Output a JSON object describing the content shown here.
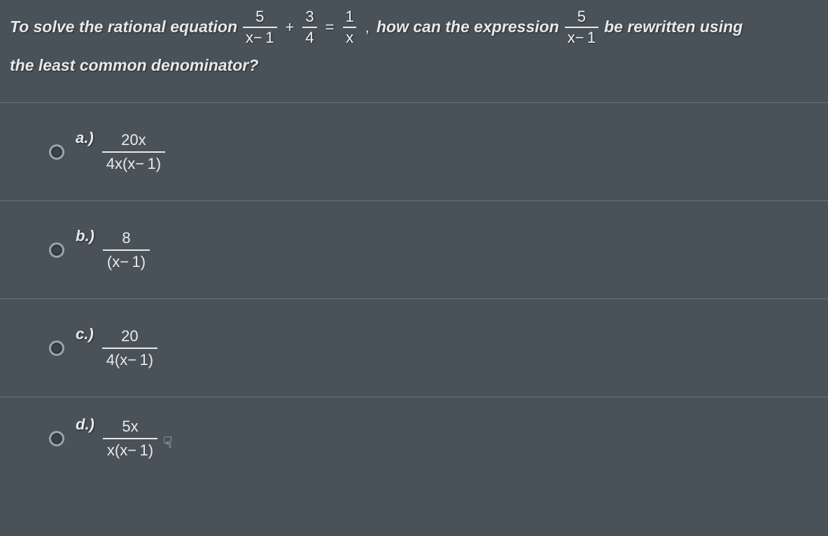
{
  "colors": {
    "background": "#4a5259",
    "text": "#e8e8e8",
    "divider": "#6b7279",
    "radio_border": "#9aa4ad",
    "radio_bg": "#3c444b",
    "frac_rule": "#e8e8e8"
  },
  "typography": {
    "question_fontsize": 23,
    "question_style": "bold italic",
    "math_fontsize": 22,
    "option_label_fontsize": 22
  },
  "question": {
    "part1": "To solve the rational equation",
    "eq_frac1": {
      "num": "5",
      "den": "x− 1"
    },
    "op_plus": "+",
    "eq_frac2": {
      "num": "3",
      "den": "4"
    },
    "op_eq": "=",
    "eq_frac3": {
      "num": "1",
      "den": "x"
    },
    "comma": ",",
    "part2": "how can the expression",
    "expr_frac": {
      "num": "5",
      "den": "x− 1"
    },
    "part3": "be rewritten using",
    "part4": "the least common denominator?"
  },
  "options": [
    {
      "label": "a.)",
      "num": "20x",
      "den": "4x(x− 1)"
    },
    {
      "label": "b.)",
      "num": "8",
      "den": "(x− 1)"
    },
    {
      "label": "c.)",
      "num": "20",
      "den": "4(x− 1)"
    },
    {
      "label": "d.)",
      "num": "5x",
      "den": "x(x− 1)"
    }
  ],
  "cursor_glyph": "☟"
}
